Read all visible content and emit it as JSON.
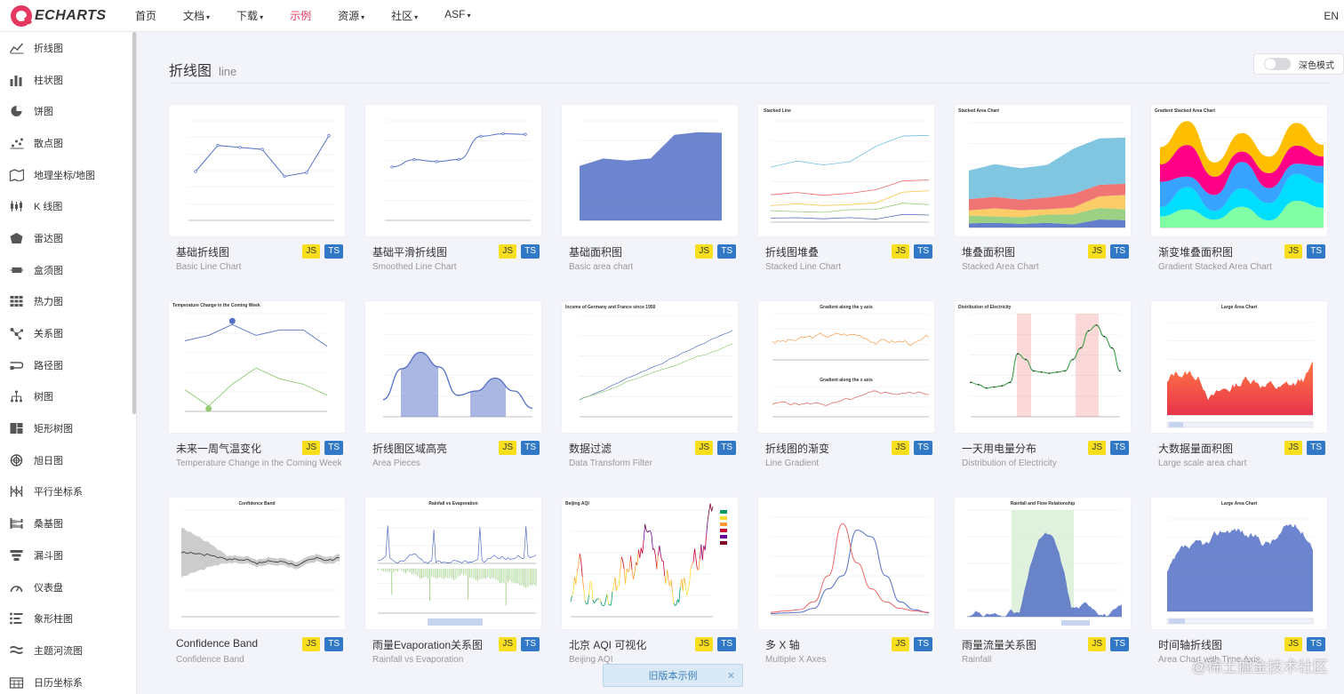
{
  "header": {
    "logo_text": "ECHARTS",
    "nav": [
      {
        "label": "首页",
        "caret": ""
      },
      {
        "label": "文档",
        "caret": "▾"
      },
      {
        "label": "下载",
        "caret": "▾"
      },
      {
        "label": "示例",
        "caret": ""
      },
      {
        "label": "资源",
        "caret": "▾"
      },
      {
        "label": "社区",
        "caret": "▾"
      },
      {
        "label": "ASF",
        "caret": "▾"
      }
    ],
    "active_index": 3,
    "lang": "EN"
  },
  "sidebar": {
    "items": [
      {
        "label": "折线图",
        "icon": "line-chart-icon"
      },
      {
        "label": "柱状图",
        "icon": "bar-chart-icon"
      },
      {
        "label": "饼图",
        "icon": "pie-chart-icon"
      },
      {
        "label": "散点图",
        "icon": "scatter-chart-icon"
      },
      {
        "label": "地理坐标/地图",
        "icon": "map-icon"
      },
      {
        "label": "K 线图",
        "icon": "candlestick-icon"
      },
      {
        "label": "雷达图",
        "icon": "radar-icon"
      },
      {
        "label": "盒须图",
        "icon": "boxplot-icon"
      },
      {
        "label": "热力图",
        "icon": "heatmap-icon"
      },
      {
        "label": "关系图",
        "icon": "graph-icon"
      },
      {
        "label": "路径图",
        "icon": "lines-icon"
      },
      {
        "label": "树图",
        "icon": "tree-icon"
      },
      {
        "label": "矩形树图",
        "icon": "treemap-icon"
      },
      {
        "label": "旭日图",
        "icon": "sunburst-icon"
      },
      {
        "label": "平行坐标系",
        "icon": "parallel-icon"
      },
      {
        "label": "桑基图",
        "icon": "sankey-icon"
      },
      {
        "label": "漏斗图",
        "icon": "funnel-icon"
      },
      {
        "label": "仪表盘",
        "icon": "gauge-icon"
      },
      {
        "label": "象形柱图",
        "icon": "pictorial-bar-icon"
      },
      {
        "label": "主题河流图",
        "icon": "theme-river-icon"
      },
      {
        "label": "日历坐标系",
        "icon": "calendar-icon"
      }
    ]
  },
  "main": {
    "title": "折线图",
    "subtitle": "line",
    "dark_mode_label": "深色模式",
    "badges": {
      "js": "JS",
      "ts": "TS"
    },
    "cards": [
      {
        "title": "基础折线图",
        "subtitle": "Basic Line Chart",
        "thumb": "basic-line"
      },
      {
        "title": "基础平滑折线图",
        "subtitle": "Smoothed Line Chart",
        "thumb": "smooth-line"
      },
      {
        "title": "基础面积图",
        "subtitle": "Basic area chart",
        "thumb": "basic-area"
      },
      {
        "title": "折线图堆叠",
        "subtitle": "Stacked Line Chart",
        "thumb": "stacked-line"
      },
      {
        "title": "堆叠面积图",
        "subtitle": "Stacked Area Chart",
        "thumb": "stacked-area"
      },
      {
        "title": "渐变堆叠面积图",
        "subtitle": "Gradient Stacked Area Chart",
        "thumb": "gradient-stacked"
      },
      {
        "title": "未来一周气温变化",
        "subtitle": "Temperature Change in the Coming Week",
        "thumb": "temperature"
      },
      {
        "title": "折线图区域高亮",
        "subtitle": "Area Pieces",
        "thumb": "area-pieces"
      },
      {
        "title": "数据过滤",
        "subtitle": "Data Transform Filter",
        "thumb": "data-filter"
      },
      {
        "title": "折线图的渐变",
        "subtitle": "Line Gradient",
        "thumb": "line-gradient"
      },
      {
        "title": "一天用电量分布",
        "subtitle": "Distribution of Electricity",
        "thumb": "electricity"
      },
      {
        "title": "大数据量面积图",
        "subtitle": "Large scale area chart",
        "thumb": "large-area"
      },
      {
        "title": "Confidence Band",
        "subtitle": "Confidence Band",
        "thumb": "confidence-band"
      },
      {
        "title": "雨量Evaporation关系图",
        "subtitle": "Rainfall vs Evaporation",
        "thumb": "rainfall-evaporation"
      },
      {
        "title": "北京 AQI 可视化",
        "subtitle": "Beijing AQI",
        "thumb": "beijing-aqi"
      },
      {
        "title": "多 X 轴",
        "subtitle": "Multiple X Axes",
        "thumb": "multiple-x"
      },
      {
        "title": "雨量流量关系图",
        "subtitle": "Rainfall",
        "thumb": "rainfall-flow"
      },
      {
        "title": "时间轴折线图",
        "subtitle": "Area Chart with Time Axis",
        "thumb": "time-axis"
      }
    ]
  },
  "thumb_text": {
    "stacked_line": "Stacked Line",
    "stacked_area": "Stacked Area Chart",
    "gradient_stacked": "Gradient Stacked Area Chart",
    "temperature": "Temperature Change in the Coming Week",
    "data_filter": "Income of Germany and France since 1950",
    "gradient_y": "Gradient along the y axis",
    "gradient_x": "Gradient along the x axis",
    "electricity": "Distribution of Electricity",
    "large_area": "Large Area Chart",
    "confidence_band": "Confidence Band",
    "rainfall_evaporation": "Rainfall vs Evaporation",
    "beijing_aqi": "Beijing AQI",
    "rainfall_flow": "Rainfall and Flow Relationship",
    "time_axis": "Large Area Chart"
  },
  "footer": {
    "old_examples": "旧版本示例",
    "close": "✕",
    "watermark": "@稀土掘金技术社区"
  },
  "colors": {
    "brand": "#e43961",
    "series_blue": "#5470c6",
    "series_green": "#91cc75",
    "series_yellow": "#fac858",
    "series_red": "#ee6666",
    "series_cyan": "#73c0de",
    "js_badge": "#f7df1e",
    "ts_badge": "#3178c6"
  }
}
